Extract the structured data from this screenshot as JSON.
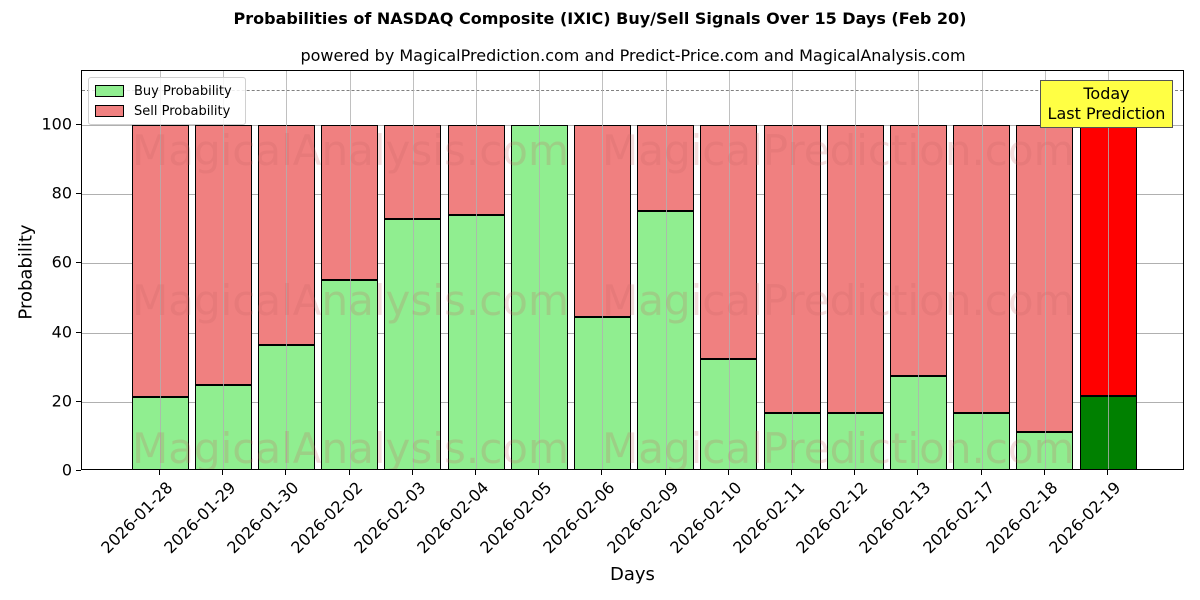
{
  "chart_data": {
    "type": "bar",
    "stacked": true,
    "title": "Probabilities of NASDAQ Composite (IXIC) Buy/Sell Signals Over 15 Days (Feb 20)",
    "subtitle": "powered by MagicalPrediction.com and Predict-Price.com and MagicalAnalysis.com",
    "xlabel": "Days",
    "ylabel": "Probability",
    "ylim": [
      0,
      115
    ],
    "yticks": [
      0,
      20,
      40,
      60,
      80,
      100
    ],
    "grid": true,
    "legend_position": "upper left",
    "categories": [
      "2026-01-28",
      "2026-01-29",
      "2026-01-30",
      "2026-02-02",
      "2026-02-03",
      "2026-02-04",
      "2026-02-05",
      "2026-02-06",
      "2026-02-09",
      "2026-02-10",
      "2026-02-11",
      "2026-02-12",
      "2026-02-13",
      "2026-02-17",
      "2026-02-18",
      "2026-02-19"
    ],
    "series": [
      {
        "name": "Buy Probability",
        "color": "#90ee90",
        "values": [
          21.5,
          24.8,
          36.4,
          55.3,
          72.7,
          73.9,
          100,
          44.6,
          75.1,
          32.5,
          16.9,
          16.9,
          27.6,
          16.9,
          11.3,
          21.6
        ]
      },
      {
        "name": "Sell Probability",
        "color": "#f08080",
        "values": [
          78.5,
          75.2,
          63.6,
          44.7,
          27.3,
          26.1,
          0,
          55.4,
          24.9,
          67.5,
          83.1,
          83.1,
          72.4,
          83.1,
          88.7,
          78.4
        ]
      }
    ],
    "highlight": {
      "index": 15,
      "buy_color": "#008000",
      "sell_color": "#ff0000"
    },
    "reference_line": {
      "y": 110,
      "style": "dashed",
      "color": "#808080"
    },
    "annotations": [
      {
        "text": "Today\nLast Prediction",
        "line1": "Today",
        "line2": "Last Prediction",
        "background": "#ffff44"
      }
    ],
    "watermarks": [
      "MagicalAnalysis.com",
      "MagicalPrediction.com"
    ]
  }
}
